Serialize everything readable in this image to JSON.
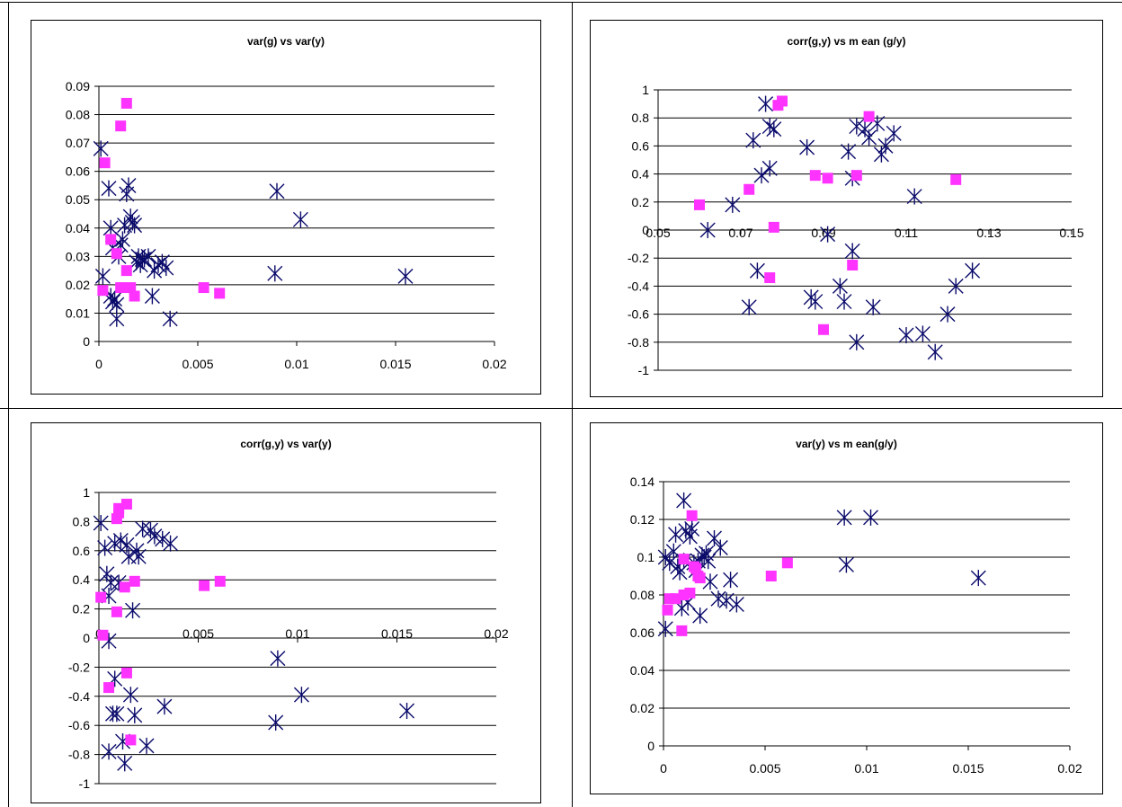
{
  "colors": {
    "series_a": "#0a0a6b",
    "series_b": "#ff33ff",
    "gridline": "#000000",
    "frame": "#000000"
  },
  "chart_data": [
    {
      "type": "scatter",
      "title": "var(g) vs var(y)",
      "xlabel": "",
      "ylabel": "",
      "xlim": [
        0,
        0.02
      ],
      "ylim": [
        0,
        0.09
      ],
      "xticks": [
        "0",
        "0.005",
        "0.01",
        "0.015",
        "0.02"
      ],
      "yticks": [
        "0",
        "0.01",
        "0.02",
        "0.03",
        "0.04",
        "0.05",
        "0.06",
        "0.07",
        "0.08",
        "0.09"
      ],
      "xtick_values": [
        0,
        0.005,
        0.01,
        0.015,
        0.02
      ],
      "ytick_values": [
        0,
        0.01,
        0.02,
        0.03,
        0.04,
        0.05,
        0.06,
        0.07,
        0.08,
        0.09
      ],
      "grid": "horizontal",
      "series": [
        {
          "marker": "asterisk",
          "points": [
            [
              0.0001,
              0.068
            ],
            [
              0.0002,
              0.023
            ],
            [
              0.0005,
              0.054
            ],
            [
              0.0006,
              0.04
            ],
            [
              0.0007,
              0.033
            ],
            [
              0.0006,
              0.016
            ],
            [
              0.0007,
              0.014
            ],
            [
              0.0008,
              0.015
            ],
            [
              0.0009,
              0.008
            ],
            [
              0.0009,
              0.013
            ],
            [
              0.001,
              0.03
            ],
            [
              0.0011,
              0.034
            ],
            [
              0.0012,
              0.036
            ],
            [
              0.0013,
              0.041
            ],
            [
              0.0014,
              0.052
            ],
            [
              0.0015,
              0.055
            ],
            [
              0.0016,
              0.044
            ],
            [
              0.0017,
              0.042
            ],
            [
              0.0018,
              0.041
            ],
            [
              0.0019,
              0.028
            ],
            [
              0.002,
              0.03
            ],
            [
              0.0021,
              0.027
            ],
            [
              0.0022,
              0.029
            ],
            [
              0.0023,
              0.029
            ],
            [
              0.0025,
              0.03
            ],
            [
              0.0027,
              0.016
            ],
            [
              0.0028,
              0.025
            ],
            [
              0.003,
              0.027
            ],
            [
              0.0032,
              0.028
            ],
            [
              0.0034,
              0.026
            ],
            [
              0.0036,
              0.008
            ],
            [
              0.0089,
              0.024
            ],
            [
              0.009,
              0.053
            ],
            [
              0.0102,
              0.043
            ],
            [
              0.0155,
              0.023
            ]
          ]
        },
        {
          "marker": "square",
          "points": [
            [
              0.0002,
              0.018
            ],
            [
              0.0003,
              0.063
            ],
            [
              0.0006,
              0.036
            ],
            [
              0.0009,
              0.031
            ],
            [
              0.0011,
              0.076
            ],
            [
              0.0011,
              0.019
            ],
            [
              0.0014,
              0.025
            ],
            [
              0.0014,
              0.084
            ],
            [
              0.0016,
              0.019
            ],
            [
              0.0018,
              0.016
            ],
            [
              0.0053,
              0.019
            ],
            [
              0.0061,
              0.017
            ]
          ]
        }
      ]
    },
    {
      "type": "scatter",
      "title": "corr(g,y) vs m ean (g/y)",
      "xlabel": "",
      "ylabel": "",
      "xlim": [
        0.05,
        0.15
      ],
      "ylim": [
        -1,
        1
      ],
      "xticks": [
        "0.05",
        "0.07",
        "0.09",
        "0.11",
        "0.13",
        "0.15"
      ],
      "yticks": [
        "-1",
        "-0.8",
        "-0.6",
        "-0.4",
        "-0.2",
        "0",
        "0.2",
        "0.4",
        "0.6",
        "0.8",
        "1"
      ],
      "xtick_values": [
        0.05,
        0.07,
        0.09,
        0.11,
        0.13,
        0.15
      ],
      "ytick_values": [
        -1,
        -0.8,
        -0.6,
        -0.4,
        -0.2,
        0,
        0.2,
        0.4,
        0.6,
        0.8,
        1
      ],
      "grid": "horizontal",
      "series": [
        {
          "marker": "asterisk",
          "points": [
            [
              0.062,
              0.0
            ],
            [
              0.068,
              0.18
            ],
            [
              0.072,
              -0.55
            ],
            [
              0.073,
              0.64
            ],
            [
              0.074,
              -0.29
            ],
            [
              0.075,
              0.39
            ],
            [
              0.076,
              0.9
            ],
            [
              0.077,
              0.74
            ],
            [
              0.077,
              0.44
            ],
            [
              0.078,
              0.72
            ],
            [
              0.086,
              0.59
            ],
            [
              0.087,
              -0.48
            ],
            [
              0.088,
              -0.51
            ],
            [
              0.091,
              -0.03
            ],
            [
              0.094,
              -0.4
            ],
            [
              0.095,
              -0.51
            ],
            [
              0.096,
              0.56
            ],
            [
              0.097,
              -0.15
            ],
            [
              0.097,
              0.37
            ],
            [
              0.098,
              -0.8
            ],
            [
              0.098,
              0.74
            ],
            [
              0.1,
              0.72
            ],
            [
              0.101,
              0.66
            ],
            [
              0.102,
              -0.55
            ],
            [
              0.103,
              0.76
            ],
            [
              0.104,
              0.54
            ],
            [
              0.105,
              0.6
            ],
            [
              0.107,
              0.69
            ],
            [
              0.11,
              -0.75
            ],
            [
              0.112,
              0.24
            ],
            [
              0.114,
              -0.74
            ],
            [
              0.117,
              -0.87
            ],
            [
              0.12,
              -0.6
            ],
            [
              0.122,
              -0.4
            ],
            [
              0.126,
              -0.29
            ]
          ]
        },
        {
          "marker": "square",
          "points": [
            [
              0.06,
              0.18
            ],
            [
              0.072,
              0.29
            ],
            [
              0.077,
              -0.34
            ],
            [
              0.078,
              0.02
            ],
            [
              0.079,
              0.89
            ],
            [
              0.08,
              0.92
            ],
            [
              0.088,
              0.39
            ],
            [
              0.09,
              -0.71
            ],
            [
              0.091,
              0.37
            ],
            [
              0.097,
              -0.25
            ],
            [
              0.098,
              0.39
            ],
            [
              0.101,
              0.81
            ],
            [
              0.122,
              0.36
            ]
          ]
        }
      ]
    },
    {
      "type": "scatter",
      "title": "corr(g,y) vs var(y)",
      "xlabel": "",
      "ylabel": "",
      "xlim": [
        0,
        0.02
      ],
      "ylim": [
        -1,
        1
      ],
      "xticks": [
        "0",
        "0.005",
        "0.01",
        "0.015",
        "0.02"
      ],
      "yticks": [
        "-1",
        "-0.8",
        "-0.6",
        "-0.4",
        "-0.2",
        "0",
        "0.2",
        "0.4",
        "0.6",
        "0.8",
        "1"
      ],
      "xtick_values": [
        0,
        0.005,
        0.01,
        0.015,
        0.02
      ],
      "ytick_values": [
        -1,
        -0.8,
        -0.6,
        -0.4,
        -0.2,
        0,
        0.2,
        0.4,
        0.6,
        0.8,
        1
      ],
      "grid": "horizontal",
      "series": [
        {
          "marker": "asterisk",
          "points": [
            [
              0.0001,
              0.79
            ],
            [
              0.0003,
              0.62
            ],
            [
              0.0004,
              0.44
            ],
            [
              0.0005,
              0.29
            ],
            [
              0.0005,
              -0.78
            ],
            [
              0.0005,
              -0.02
            ],
            [
              0.0006,
              0.38
            ],
            [
              0.0007,
              -0.52
            ],
            [
              0.0008,
              0.65
            ],
            [
              0.0008,
              -0.28
            ],
            [
              0.0009,
              -0.52
            ],
            [
              0.001,
              0.38
            ],
            [
              0.0011,
              0.67
            ],
            [
              0.0012,
              -0.71
            ],
            [
              0.0013,
              -0.86
            ],
            [
              0.0014,
              0.64
            ],
            [
              0.0015,
              0.56
            ],
            [
              0.0016,
              -0.39
            ],
            [
              0.0017,
              0.19
            ],
            [
              0.0018,
              -0.53
            ],
            [
              0.0019,
              0.6
            ],
            [
              0.002,
              0.56
            ],
            [
              0.0022,
              0.75
            ],
            [
              0.0024,
              -0.74
            ],
            [
              0.0026,
              0.74
            ],
            [
              0.0028,
              0.7
            ],
            [
              0.0032,
              0.68
            ],
            [
              0.0033,
              -0.47
            ],
            [
              0.0036,
              0.65
            ],
            [
              0.0089,
              -0.58
            ],
            [
              0.009,
              -0.14
            ],
            [
              0.0102,
              -0.39
            ],
            [
              0.0155,
              -0.5
            ]
          ]
        },
        {
          "marker": "square",
          "points": [
            [
              0.0001,
              0.28
            ],
            [
              0.0002,
              0.02
            ],
            [
              0.0005,
              -0.34
            ],
            [
              0.0009,
              0.18
            ],
            [
              0.0009,
              0.82
            ],
            [
              0.001,
              0.86
            ],
            [
              0.001,
              0.89
            ],
            [
              0.0013,
              0.35
            ],
            [
              0.0014,
              -0.24
            ],
            [
              0.0014,
              0.92
            ],
            [
              0.0016,
              -0.7
            ],
            [
              0.0018,
              0.39
            ],
            [
              0.0053,
              0.36
            ],
            [
              0.0061,
              0.39
            ]
          ]
        }
      ]
    },
    {
      "type": "scatter",
      "title": "var(y) vs m ean(g/y)",
      "xlabel": "",
      "ylabel": "",
      "xlim": [
        0,
        0.02
      ],
      "ylim": [
        0,
        0.14
      ],
      "xticks": [
        "0",
        "0.005",
        "0.01",
        "0.015",
        "0.02"
      ],
      "yticks": [
        "0",
        "0.02",
        "0.04",
        "0.06",
        "0.08",
        "0.1",
        "0.12",
        "0.14"
      ],
      "xtick_values": [
        0,
        0.005,
        0.01,
        0.015,
        0.02
      ],
      "ytick_values": [
        0,
        0.02,
        0.04,
        0.06,
        0.08,
        0.1,
        0.12,
        0.14
      ],
      "grid": "horizontal",
      "series": [
        {
          "marker": "asterisk",
          "points": [
            [
              0.0001,
              0.062
            ],
            [
              0.0001,
              0.1
            ],
            [
              0.0003,
              0.097
            ],
            [
              0.0005,
              0.103
            ],
            [
              0.0006,
              0.112
            ],
            [
              0.0007,
              0.095
            ],
            [
              0.0008,
              0.092
            ],
            [
              0.0009,
              0.073
            ],
            [
              0.001,
              0.13
            ],
            [
              0.001,
              0.098
            ],
            [
              0.0011,
              0.114
            ],
            [
              0.0012,
              0.076
            ],
            [
              0.0013,
              0.111
            ],
            [
              0.0014,
              0.115
            ],
            [
              0.0015,
              0.097
            ],
            [
              0.0016,
              0.093
            ],
            [
              0.0017,
              0.098
            ],
            [
              0.0018,
              0.069
            ],
            [
              0.0019,
              0.101
            ],
            [
              0.002,
              0.1
            ],
            [
              0.0021,
              0.102
            ],
            [
              0.0022,
              0.098
            ],
            [
              0.0023,
              0.087
            ],
            [
              0.0025,
              0.11
            ],
            [
              0.0027,
              0.078
            ],
            [
              0.0028,
              0.105
            ],
            [
              0.0031,
              0.077
            ],
            [
              0.0033,
              0.088
            ],
            [
              0.0036,
              0.075
            ],
            [
              0.0089,
              0.121
            ],
            [
              0.009,
              0.096
            ],
            [
              0.0102,
              0.121
            ],
            [
              0.0155,
              0.089
            ]
          ]
        },
        {
          "marker": "square",
          "points": [
            [
              0.0002,
              0.072
            ],
            [
              0.0003,
              0.078
            ],
            [
              0.0006,
              0.078
            ],
            [
              0.0009,
              0.061
            ],
            [
              0.001,
              0.08
            ],
            [
              0.001,
              0.099
            ],
            [
              0.0013,
              0.081
            ],
            [
              0.0014,
              0.122
            ],
            [
              0.0015,
              0.095
            ],
            [
              0.0016,
              0.094
            ],
            [
              0.0017,
              0.09
            ],
            [
              0.0018,
              0.089
            ],
            [
              0.0053,
              0.09
            ],
            [
              0.0061,
              0.097
            ]
          ]
        }
      ]
    }
  ]
}
